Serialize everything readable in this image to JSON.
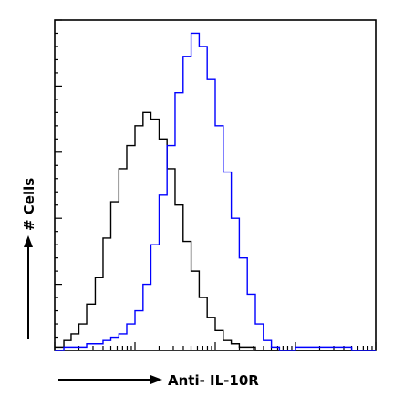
{
  "chart_data": {
    "type": "line",
    "title": "",
    "xlabel": "Anti- IL-10R",
    "ylabel": "# Cells",
    "x_scale": "log",
    "xlim": [
      1,
      10000
    ],
    "ylim": [
      0,
      100
    ],
    "grid": false,
    "legend": "none",
    "series": [
      {
        "color": "#000000",
        "x": [
          1.0,
          1.3,
          1.6,
          2.0,
          2.5,
          3.2,
          4.0,
          5.0,
          6.3,
          7.9,
          10.0,
          12.6,
          15.8,
          20.0,
          25.1,
          31.6,
          39.8,
          50.1,
          63.1,
          79.4,
          100.0,
          125.9,
          158.5,
          199.5,
          251.2,
          316.2,
          398.1,
          501.2,
          631.0,
          794.3,
          1000.0,
          1995.0,
          5012.0,
          10000.0
        ],
        "y": [
          1,
          3,
          5,
          8,
          14,
          22,
          34,
          45,
          55,
          62,
          68,
          72,
          70,
          64,
          55,
          44,
          33,
          24,
          16,
          10,
          6,
          3,
          2,
          1,
          1,
          0,
          0,
          0,
          0,
          0,
          0,
          0,
          0,
          0
        ]
      },
      {
        "color": "#0000ff",
        "x": [
          1.0,
          1.3,
          1.6,
          2.0,
          2.5,
          3.2,
          4.0,
          5.0,
          6.3,
          7.9,
          10.0,
          12.6,
          15.8,
          20.0,
          25.1,
          31.6,
          39.8,
          50.1,
          63.1,
          79.4,
          100.0,
          125.9,
          158.5,
          199.5,
          251.2,
          316.2,
          398.1,
          501.2,
          631.0,
          794.3,
          1000.0,
          1995.0,
          5012.0,
          10000.0
        ],
        "y": [
          0,
          1,
          1,
          1,
          2,
          2,
          3,
          4,
          5,
          8,
          12,
          20,
          32,
          47,
          62,
          78,
          89,
          96,
          92,
          82,
          68,
          54,
          40,
          28,
          17,
          8,
          3,
          1,
          0,
          0,
          1,
          1,
          0,
          0
        ]
      }
    ]
  }
}
